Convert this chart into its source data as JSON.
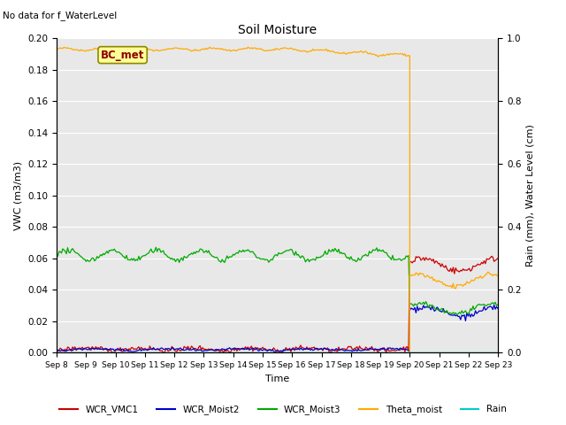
{
  "title": "Soil Moisture",
  "top_left_text": "No data for f_WaterLevel",
  "annotation_text": "BC_met",
  "xlabel": "Time",
  "ylabel_left": "VWC (m3/m3)",
  "ylabel_right": "Rain (mm), Water Level (cm)",
  "ylim_left": [
    0.0,
    0.2
  ],
  "ylim_right": [
    0.0,
    1.0
  ],
  "background_color": "#e8e8e8",
  "grid_color": "white",
  "legend_labels": [
    "WCR_VMC1",
    "WCR_Moist2",
    "WCR_Moist3",
    "Theta_moist",
    "Rain"
  ],
  "legend_colors": [
    "#cc0000",
    "#0000cc",
    "#00aa00",
    "#ffaa00",
    "#00cccc"
  ],
  "tick_labels": [
    "Sep 8",
    "Sep 9",
    "Sep 10",
    "Sep 11",
    "Sep 12",
    "Sep 13",
    "Sep 14",
    "Sep 15",
    "Sep 16",
    "Sep 17",
    "Sep 18",
    "Sep 19",
    "Sep 20",
    "Sep 21",
    "Sep 22",
    "Sep 23"
  ],
  "n_pre_days": 12,
  "n_post_days": 4,
  "transition_day": 12,
  "theta_pre_value": 0.193,
  "theta_post_value": 0.046,
  "vmcl_pre_value": 0.001,
  "vmcl_post_value": 0.056,
  "moist2_pre_value": 0.001,
  "moist2_post_value": 0.026,
  "moist3_pre_value": 0.062,
  "moist3_post_value": 0.028,
  "annotation_bbox_facecolor": "#ffff99",
  "annotation_bbox_edgecolor": "#8B8800",
  "annotation_text_color": "#8B0000"
}
